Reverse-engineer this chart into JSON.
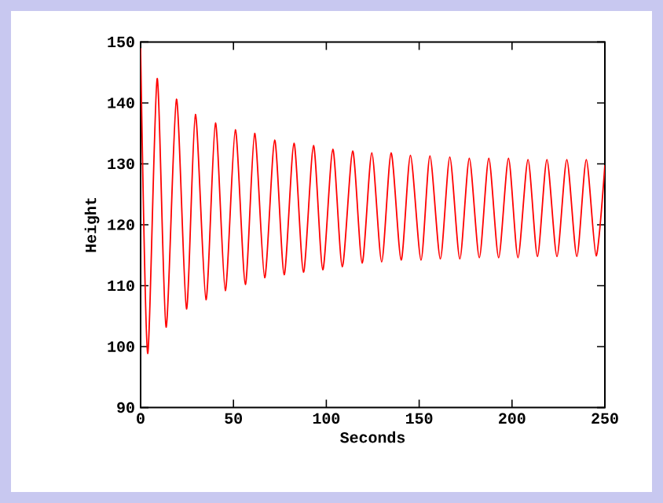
{
  "chart_data": {
    "type": "line",
    "xlabel": "Seconds",
    "ylabel": "Height",
    "xlim": [
      0,
      250
    ],
    "ylim": [
      90,
      150
    ],
    "xticks": [
      0,
      50,
      100,
      150,
      200,
      250
    ],
    "yticks": [
      90,
      100,
      110,
      120,
      130,
      140,
      150
    ],
    "grid": false,
    "marker": "none",
    "line_style": "solid",
    "series": [
      {
        "color": "#ff0000",
        "x": [
          0,
          3.8,
          8.9,
          13.7,
          19.3,
          24.7,
          29.5,
          35.2,
          40.3,
          45.6,
          51,
          56.4,
          61.4,
          66.8,
          72.2,
          77.3,
          82.6,
          87.7,
          93.1,
          98.1,
          103.5,
          108.6,
          114.2,
          119.3,
          124.5,
          129.8,
          134.9,
          140.3,
          145.3,
          151,
          155.8,
          161.4,
          166.5,
          171.9,
          177,
          182.4,
          187.5,
          192.8,
          198.1,
          203.2,
          208.6,
          213.7,
          218.8,
          224.2,
          229.5,
          234.9,
          240,
          245.3,
          250
        ],
        "values": [
          149,
          98.9,
          144,
          103.2,
          140.6,
          106.2,
          138.1,
          107.7,
          136.7,
          109.2,
          135.6,
          110.2,
          135,
          111.3,
          133.9,
          111.8,
          133.4,
          112.2,
          133,
          112.6,
          132.4,
          113.1,
          132.1,
          113.7,
          131.8,
          113.9,
          131.8,
          114.2,
          131.4,
          114.2,
          131.3,
          114.4,
          131.1,
          114.4,
          130.9,
          114.6,
          130.9,
          114.6,
          130.9,
          114.6,
          130.7,
          114.8,
          130.7,
          114.8,
          130.7,
          114.8,
          130.7,
          114.9,
          129.8
        ]
      }
    ]
  }
}
